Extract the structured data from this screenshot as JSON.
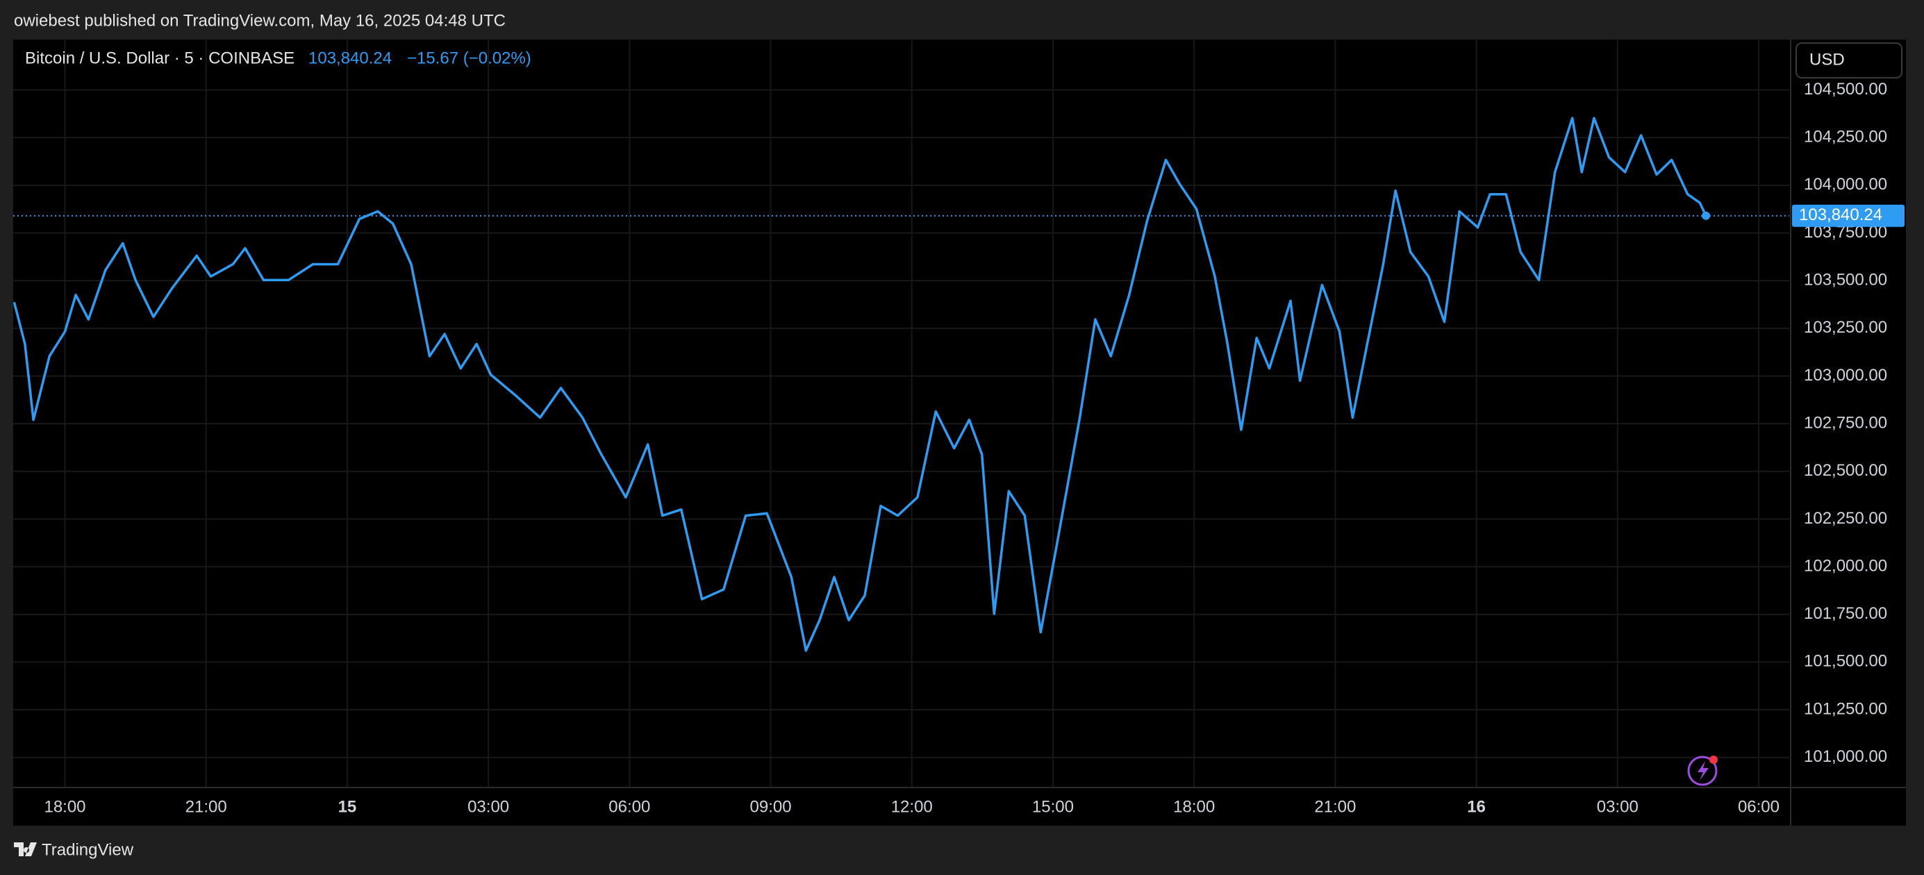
{
  "header": {
    "text": "owiebest published on TradingView.com, May 16, 2025 04:48 UTC"
  },
  "footer": {
    "brand": "TradingView"
  },
  "currency_button": "USD",
  "chart_data": {
    "type": "line",
    "last_price": {
      "value": 103840.24,
      "label": "103,840.24"
    },
    "change": "−15.67 (−0.02%)",
    "x": [
      16.92,
      17.15,
      17.33,
      17.67,
      18.0,
      18.23,
      18.5,
      18.86,
      19.23,
      19.5,
      19.88,
      20.27,
      20.8,
      21.1,
      21.57,
      21.83,
      22.22,
      22.75,
      23.27,
      23.8,
      24.26,
      24.65,
      24.97,
      25.36,
      25.75,
      26.07,
      26.41,
      26.75,
      27.05,
      27.58,
      28.1,
      28.54,
      29.0,
      29.4,
      29.92,
      30.39,
      30.7,
      31.1,
      31.54,
      32.0,
      32.47,
      32.92,
      33.44,
      33.75,
      34.04,
      34.35,
      34.66,
      35.0,
      35.34,
      35.7,
      36.12,
      36.51,
      36.9,
      37.22,
      37.49,
      37.75,
      38.06,
      38.4,
      38.74,
      39.1,
      39.57,
      39.9,
      40.23,
      40.62,
      41.0,
      41.4,
      41.7,
      42.05,
      42.44,
      42.7,
      43.0,
      43.33,
      43.6,
      44.05,
      44.25,
      44.72,
      45.09,
      45.37,
      45.68,
      46.02,
      46.28,
      46.6,
      46.98,
      47.32,
      47.64,
      48.03,
      48.29,
      48.63,
      48.94,
      49.33,
      49.67,
      50.04,
      50.24,
      50.5,
      50.82,
      51.16,
      51.5,
      51.83,
      52.15,
      52.49,
      52.75,
      52.88
    ],
    "series": [
      {
        "name": "Bitcoin / U.S. Dollar · 5 · COINBASE",
        "color": "#2e9cf3",
        "values": [
          103387,
          103168,
          102770,
          103104,
          103233,
          103425,
          103297,
          103555,
          103696,
          103503,
          103310,
          103458,
          103631,
          103522,
          103586,
          103670,
          103503,
          103503,
          103586,
          103586,
          103824,
          103863,
          103799,
          103586,
          103104,
          103220,
          103040,
          103168,
          103007,
          102898,
          102782,
          102937,
          102782,
          102589,
          102364,
          102641,
          102268,
          102300,
          101830,
          101881,
          102268,
          102280,
          101946,
          101560,
          101720,
          101946,
          101720,
          101849,
          102319,
          102268,
          102364,
          102814,
          102621,
          102770,
          102589,
          101753,
          102396,
          102268,
          101656,
          102139,
          102782,
          103297,
          103104,
          103425,
          103812,
          104133,
          104004,
          103876,
          103522,
          103181,
          102718,
          103200,
          103040,
          103394,
          102975,
          103477,
          103233,
          102782,
          103168,
          103586,
          103972,
          103650,
          103522,
          103284,
          103863,
          103779,
          103953,
          103953,
          103650,
          103503,
          104069,
          104352,
          104069,
          104352,
          104146,
          104069,
          104262,
          104056,
          104133,
          103953,
          103908,
          103840.24
        ]
      }
    ],
    "xlim": [
      16.9,
      54.65
    ],
    "xticks": [
      {
        "value": 18,
        "label": "18:00"
      },
      {
        "value": 21,
        "label": "21:00"
      },
      {
        "value": 24,
        "label": "15"
      },
      {
        "value": 27,
        "label": "03:00"
      },
      {
        "value": 30,
        "label": "06:00"
      },
      {
        "value": 33,
        "label": "09:00"
      },
      {
        "value": 36,
        "label": "12:00"
      },
      {
        "value": 39,
        "label": "15:00"
      },
      {
        "value": 42,
        "label": "18:00"
      },
      {
        "value": 45,
        "label": "21:00"
      },
      {
        "value": 48,
        "label": "16"
      },
      {
        "value": 51,
        "label": "03:00"
      },
      {
        "value": 54,
        "label": "06:00"
      }
    ],
    "ylim": [
      100846,
      104764
    ],
    "yticks": [
      {
        "value": 101000,
        "label": "101,000.00"
      },
      {
        "value": 101250,
        "label": "101,250.00"
      },
      {
        "value": 101500,
        "label": "101,500.00"
      },
      {
        "value": 101750,
        "label": "101,750.00"
      },
      {
        "value": 102000,
        "label": "102,000.00"
      },
      {
        "value": 102250,
        "label": "102,250.00"
      },
      {
        "value": 102500,
        "label": "102,500.00"
      },
      {
        "value": 102750,
        "label": "102,750.00"
      },
      {
        "value": 103000,
        "label": "103,000.00"
      },
      {
        "value": 103250,
        "label": "103,250.00"
      },
      {
        "value": 103500,
        "label": "103,500.00"
      },
      {
        "value": 103750,
        "label": "103,750.00"
      },
      {
        "value": 104000,
        "label": "104,000.00"
      },
      {
        "value": 104250,
        "label": "104,250.00"
      },
      {
        "value": 104500,
        "label": "104,500.00"
      }
    ],
    "grid": true
  }
}
